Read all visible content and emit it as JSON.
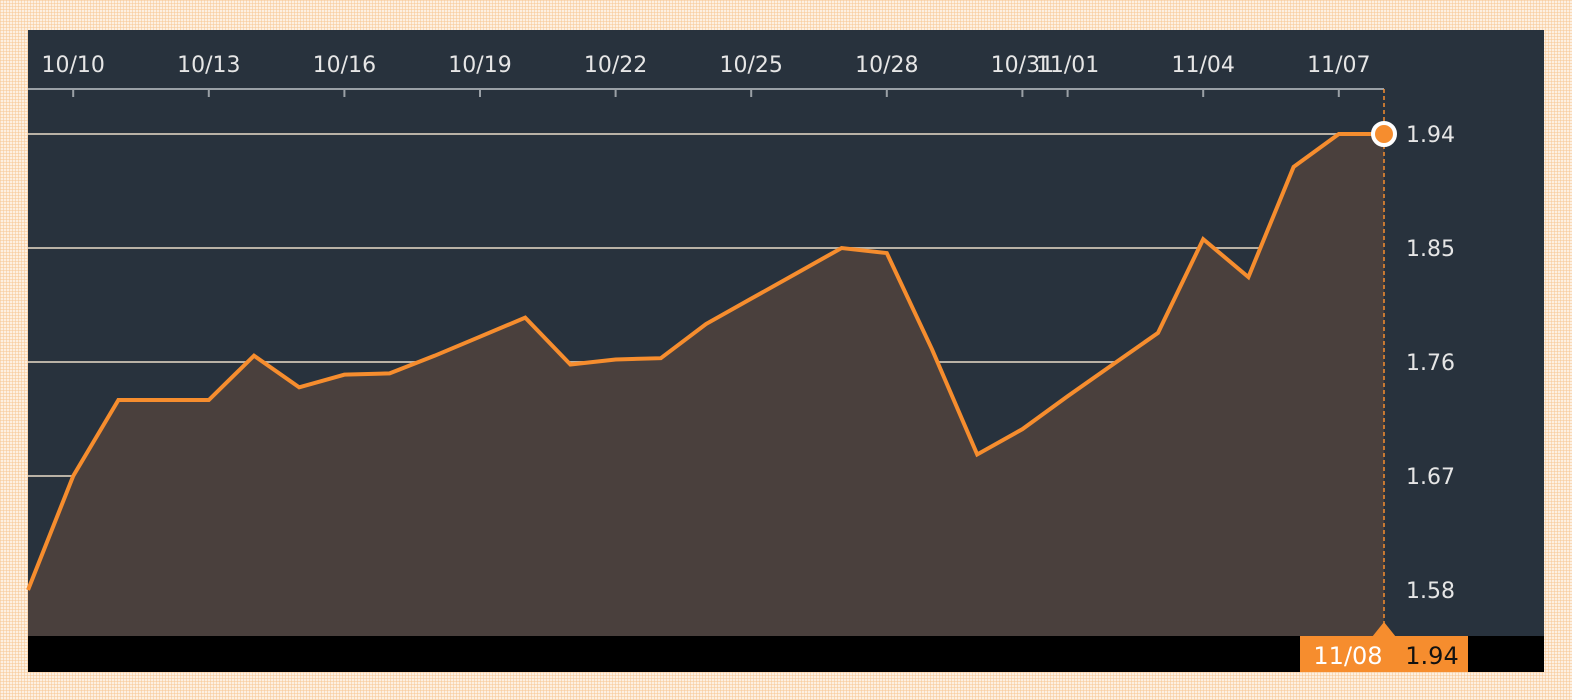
{
  "chart_data": {
    "type": "area",
    "title": "",
    "xlabel": "",
    "ylabel": "",
    "x_tick_labels": [
      "10/10",
      "10/13",
      "10/16",
      "10/19",
      "10/22",
      "10/25",
      "10/28",
      "10/31",
      "11/01",
      "11/04",
      "11/07"
    ],
    "y_tick_labels": [
      "1.94",
      "1.85",
      "1.76",
      "1.67",
      "1.58"
    ],
    "ylim": [
      1.545,
      1.985
    ],
    "grid": true,
    "series": [
      {
        "x": [
          "10/09",
          "10/10",
          "10/11",
          "10/12",
          "10/13",
          "10/14",
          "10/15",
          "10/16",
          "10/17",
          "10/18",
          "10/19",
          "10/20",
          "10/21",
          "10/22",
          "10/23",
          "10/24",
          "10/25",
          "10/26",
          "10/27",
          "10/28",
          "10/29",
          "10/30",
          "10/31",
          "11/01",
          "11/02",
          "11/03",
          "11/04",
          "11/05",
          "11/06",
          "11/07",
          "11/08"
        ],
        "values": [
          1.58,
          1.67,
          1.73,
          1.73,
          1.73,
          1.765,
          1.74,
          1.75,
          1.751,
          1.765,
          1.78,
          1.795,
          1.758,
          1.762,
          1.763,
          1.79,
          1.81,
          1.83,
          1.85,
          1.846,
          1.77,
          1.687,
          1.707,
          1.733,
          1.758,
          1.783,
          1.857,
          1.827,
          1.914,
          1.94,
          1.94
        ]
      }
    ],
    "current": {
      "date": "11/08",
      "value": "1.94"
    },
    "colors": {
      "line": "#f68d2e",
      "area": "#4a403d",
      "background": "#28323d",
      "grid": "#b9b2a6",
      "footer": "#000000"
    }
  }
}
